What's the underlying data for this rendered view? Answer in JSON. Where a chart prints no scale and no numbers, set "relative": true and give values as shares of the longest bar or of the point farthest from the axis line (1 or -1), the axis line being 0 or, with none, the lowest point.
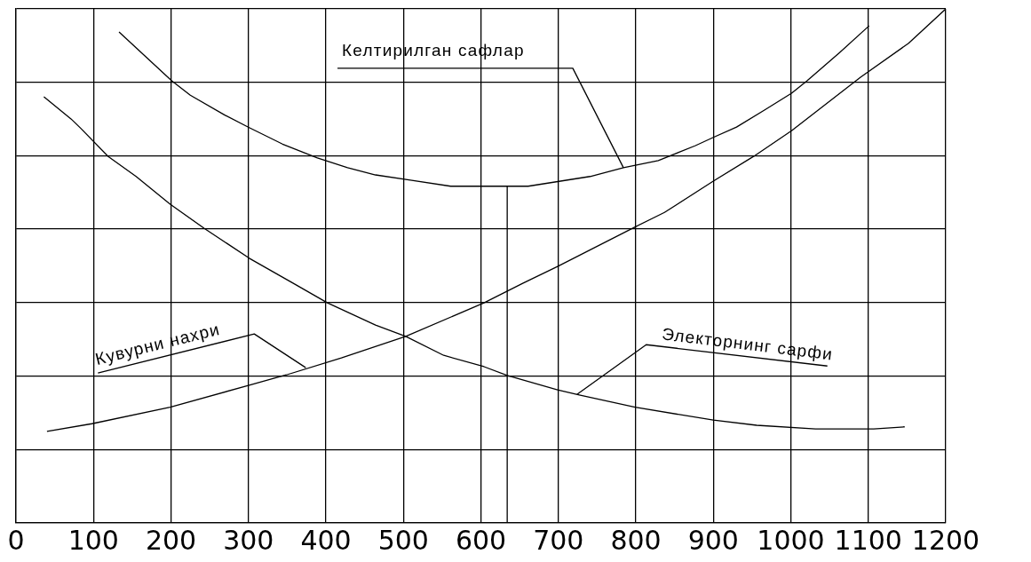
{
  "chart_data": {
    "type": "line",
    "relative": true,
    "grid": true,
    "legend": false,
    "marker": "none",
    "line_style": "solid",
    "xlim": [
      0,
      1200
    ],
    "xticks": [
      0,
      100,
      200,
      300,
      400,
      500,
      600,
      700,
      800,
      900,
      1000,
      1100,
      1200
    ],
    "series": [
      {
        "color": "#000000",
        "x": [
          133,
          201,
          225,
          270,
          301,
          344,
          389,
          428,
          464,
          509,
          561,
          634,
          661,
          741,
          784,
          829,
          877,
          900,
          930,
          966,
          1001,
          1021,
          1063,
          1101
        ],
        "values": [
          0.955,
          0.86,
          0.832,
          0.793,
          0.769,
          0.737,
          0.71,
          0.691,
          0.677,
          0.667,
          0.655,
          0.655,
          0.655,
          0.674,
          0.691,
          0.705,
          0.734,
          0.75,
          0.77,
          0.803,
          0.836,
          0.86,
          0.915,
          0.967
        ]
      },
      {
        "color": "#000000",
        "x": [
          40,
          98,
          199,
          301,
          349,
          420,
          503,
          604,
          654,
          699,
          798,
          837,
          900,
          952,
          1001,
          1090,
          1152,
          1200
        ],
        "values": [
          0.178,
          0.193,
          0.225,
          0.268,
          0.288,
          0.321,
          0.363,
          0.428,
          0.466,
          0.499,
          0.575,
          0.604,
          0.665,
          0.713,
          0.763,
          0.867,
          0.933,
          1
        ]
      },
      {
        "color": "#000000",
        "x": [
          36,
          71,
          84,
          119,
          155,
          199,
          243,
          301,
          358,
          402,
          464,
          503,
          552,
          604,
          634,
          699,
          727,
          799,
          900,
          956,
          1032,
          1107,
          1147
        ],
        "values": [
          0.829,
          0.786,
          0.767,
          0.713,
          0.674,
          0.62,
          0.573,
          0.515,
          0.466,
          0.428,
          0.385,
          0.363,
          0.326,
          0.304,
          0.287,
          0.259,
          0.249,
          0.225,
          0.2,
          0.19,
          0.183,
          0.183,
          0.187
        ]
      },
      {
        "color": "#000000",
        "x": [
          634,
          634
        ],
        "values": [
          0,
          0.655
        ]
      }
    ],
    "annotations": [
      {
        "text": "Келтирилган сафлар",
        "x": 784,
        "y": 0.691
      },
      {
        "text": "Кувурни нахри",
        "x": 374,
        "y": 0.302
      },
      {
        "text": "Электорнинг сарфи",
        "x": 724,
        "y": 0.25
      }
    ]
  }
}
